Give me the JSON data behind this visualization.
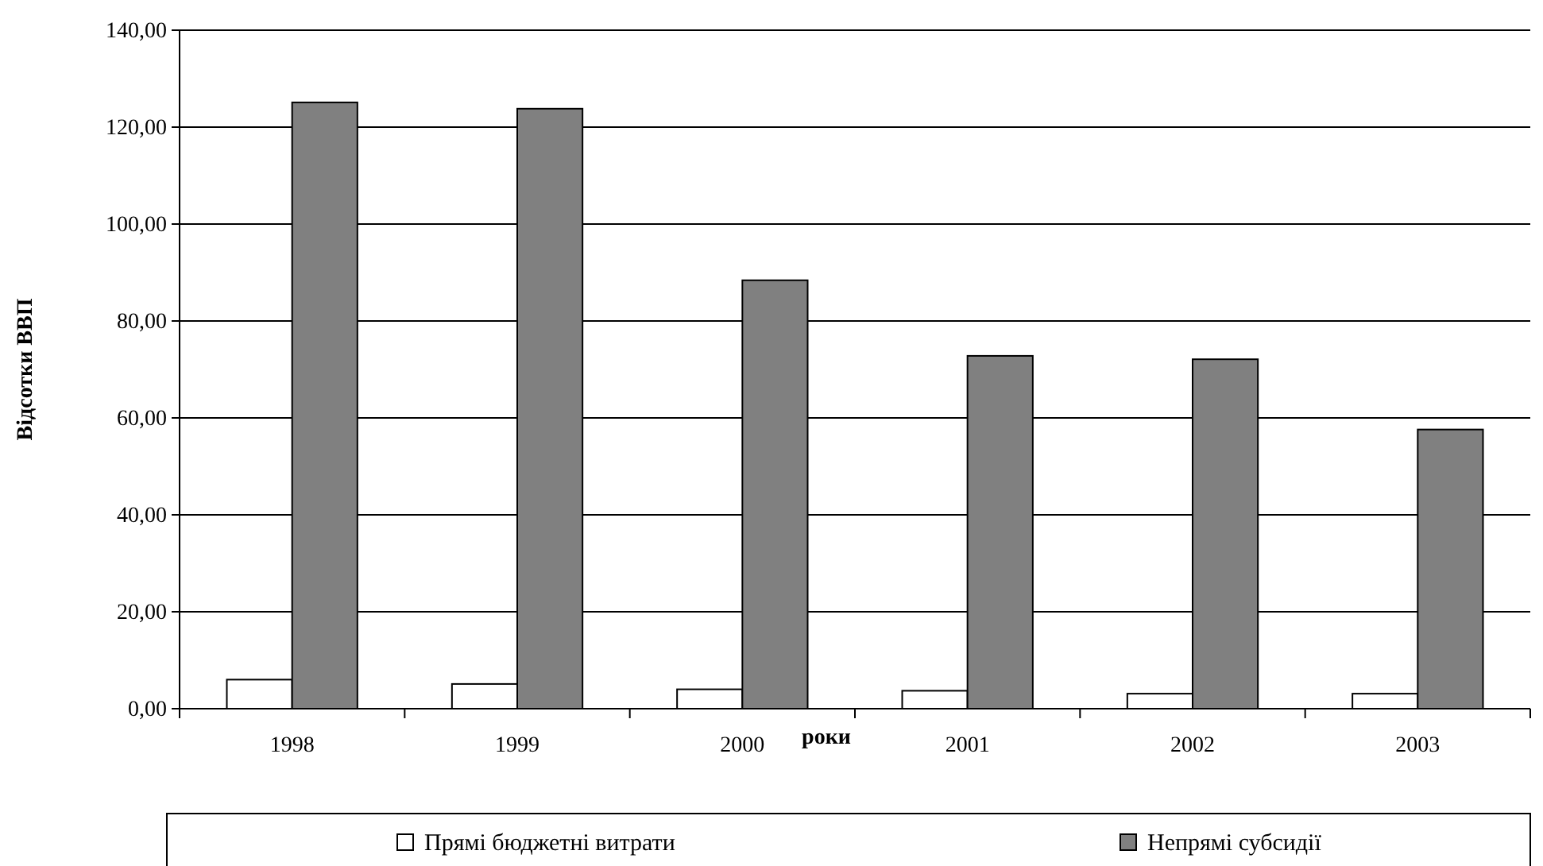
{
  "chart_data": {
    "type": "bar",
    "xlabel": "роки",
    "ylabel": "Відсотки ВВП",
    "categories": [
      "1998",
      "1999",
      "2000",
      "2001",
      "2002",
      "2003"
    ],
    "series": [
      {
        "name": "Прямі бюджетні витрати",
        "color": "#ffffff",
        "values": [
          6.0,
          5.1,
          4.0,
          3.7,
          3.1,
          3.1
        ]
      },
      {
        "name": "Непрямі субсидії",
        "color": "#808080",
        "values": [
          125.1,
          123.8,
          88.4,
          72.8,
          72.1,
          57.6
        ]
      }
    ],
    "ylim": [
      0,
      140
    ],
    "yticks": [
      {
        "value": 0,
        "label": "0,00"
      },
      {
        "value": 20,
        "label": "20,00"
      },
      {
        "value": 40,
        "label": "40,00"
      },
      {
        "value": 60,
        "label": "60,00"
      },
      {
        "value": 80,
        "label": "80,00"
      },
      {
        "value": 100,
        "label": "100,00"
      },
      {
        "value": 120,
        "label": "120,00"
      },
      {
        "value": 140,
        "label": "140,00"
      }
    ],
    "grid": "y",
    "legend": "bottom"
  }
}
